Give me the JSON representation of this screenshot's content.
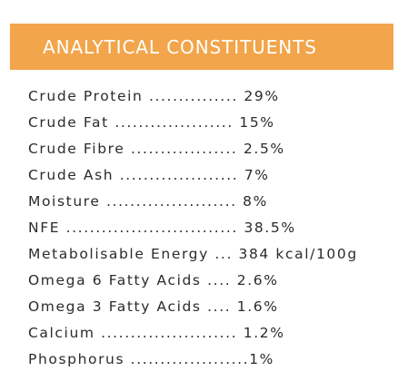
{
  "header": {
    "title": "ANALYTICAL CONSTITUENTS",
    "background": "#f2a54a"
  },
  "rows": [
    "Crude Protein ............... 29%",
    "Crude Fat .................... 15%",
    "Crude Fibre .................. 2.5%",
    "Crude Ash .................... 7%",
    "Moisture ...................... 8%",
    "NFE ............................. 38.5%",
    "Metabolisable Energy ... 384 kcal/100g",
    "Omega 6 Fatty Acids .... 2.6%",
    "Omega 3 Fatty Acids .... 1.6%",
    "Calcium ....................... 1.2%",
    "Phosphorus ....................1%"
  ]
}
